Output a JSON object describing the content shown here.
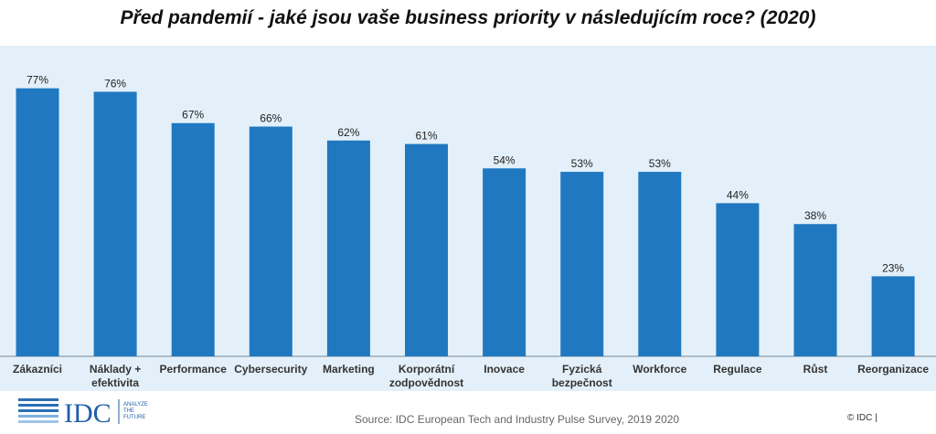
{
  "chart_data": {
    "type": "bar",
    "title": "Před pandemií - jaké jsou vaše business priority v následujícím roce? (2020)",
    "categories": [
      [
        "Zákazníci"
      ],
      [
        "Náklady +",
        "efektivita"
      ],
      [
        "Performance"
      ],
      [
        "Cybersecurity"
      ],
      [
        "Marketing"
      ],
      [
        "Korporátní",
        "zodpovědnost"
      ],
      [
        "Inovace"
      ],
      [
        "Fyzická",
        "bezpečnost"
      ],
      [
        "Workforce"
      ],
      [
        "Regulace"
      ],
      [
        "Růst"
      ],
      [
        "Reorganizace"
      ]
    ],
    "values": [
      77,
      76,
      67,
      66,
      62,
      61,
      54,
      53,
      53,
      44,
      38,
      23
    ],
    "value_labels": [
      "77%",
      "76%",
      "67%",
      "66%",
      "62%",
      "61%",
      "54%",
      "53%",
      "53%",
      "44%",
      "38%",
      "23%"
    ],
    "ylim": [
      0,
      100
    ],
    "xlabel": "",
    "ylabel": "",
    "bar_color": "#2079c0"
  },
  "footer": {
    "source": "Source: IDC European Tech and Industry Pulse Survey, 2019 2020",
    "copyright": "© IDC  |",
    "logo_text": "IDC",
    "logo_tagline": [
      "ANALYZE",
      "THE",
      "FUTURE"
    ]
  }
}
